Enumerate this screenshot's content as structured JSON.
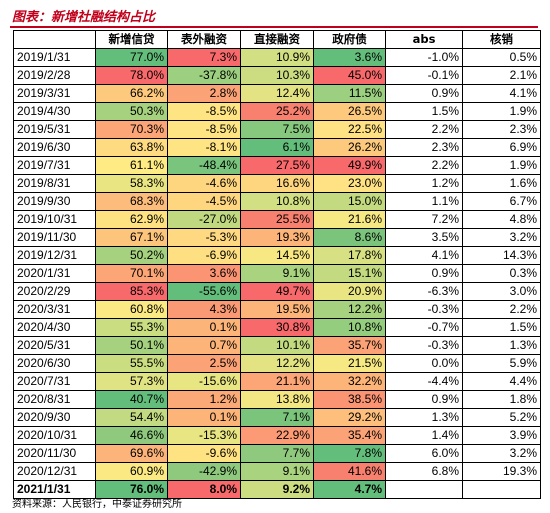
{
  "title": "图表：新增社融结构占比",
  "headers": [
    "",
    "新增信贷",
    "表外融资",
    "直接融资",
    "政府债",
    "abs",
    "核销"
  ],
  "rows": [
    {
      "date": "2019/1/31",
      "cells": [
        {
          "v": "77.0%",
          "c": "#63be7b"
        },
        {
          "v": "7.3%",
          "c": "#f8696b"
        },
        {
          "v": "10.9%",
          "c": "#d2df82"
        },
        {
          "v": "3.6%",
          "c": "#63be7b"
        },
        {
          "v": "-1.0%"
        },
        {
          "v": "0.5%"
        }
      ]
    },
    {
      "date": "2019/2/28",
      "cells": [
        {
          "v": "78.0%",
          "c": "#f8696b"
        },
        {
          "v": "-37.8%",
          "c": "#9ccf7f"
        },
        {
          "v": "10.3%",
          "c": "#cbdc81"
        },
        {
          "v": "45.0%",
          "c": "#f8696b"
        },
        {
          "v": "-0.1%"
        },
        {
          "v": "2.1%"
        }
      ]
    },
    {
      "date": "2019/3/31",
      "cells": [
        {
          "v": "66.2%",
          "c": "#fdc97d"
        },
        {
          "v": "2.8%",
          "c": "#fba276"
        },
        {
          "v": "12.4%",
          "c": "#e3e383"
        },
        {
          "v": "11.5%",
          "c": "#9ccf7f"
        },
        {
          "v": "0.9%"
        },
        {
          "v": "4.1%"
        }
      ]
    },
    {
      "date": "2019/4/30",
      "cells": [
        {
          "v": "50.3%",
          "c": "#a6d27f"
        },
        {
          "v": "-8.5%",
          "c": "#fee482"
        },
        {
          "v": "25.2%",
          "c": "#f8806f"
        },
        {
          "v": "26.5%",
          "c": "#fdc97d"
        },
        {
          "v": "1.5%"
        },
        {
          "v": "1.9%"
        }
      ]
    },
    {
      "date": "2019/5/31",
      "cells": [
        {
          "v": "70.3%",
          "c": "#fca577"
        },
        {
          "v": "-8.5%",
          "c": "#fee482"
        },
        {
          "v": "7.5%",
          "c": "#86c87d"
        },
        {
          "v": "22.5%",
          "c": "#ffe283"
        },
        {
          "v": "2.2%"
        },
        {
          "v": "2.3%"
        }
      ]
    },
    {
      "date": "2019/6/30",
      "cells": [
        {
          "v": "63.8%",
          "c": "#fedb81"
        },
        {
          "v": "-8.1%",
          "c": "#fee482"
        },
        {
          "v": "6.1%",
          "c": "#63be7b"
        },
        {
          "v": "26.2%",
          "c": "#fdc97d"
        },
        {
          "v": "2.3%"
        },
        {
          "v": "6.9%"
        }
      ]
    },
    {
      "date": "2019/7/31",
      "cells": [
        {
          "v": "61.1%",
          "c": "#ffeb84"
        },
        {
          "v": "-48.4%",
          "c": "#7ac57d"
        },
        {
          "v": "27.5%",
          "c": "#f8696b"
        },
        {
          "v": "49.9%",
          "c": "#f8696b"
        },
        {
          "v": "2.2%"
        },
        {
          "v": "1.9%"
        }
      ]
    },
    {
      "date": "2019/8/31",
      "cells": [
        {
          "v": "58.3%",
          "c": "#eae583"
        },
        {
          "v": "-4.6%",
          "c": "#fed680"
        },
        {
          "v": "16.6%",
          "c": "#fed680"
        },
        {
          "v": "23.0%",
          "c": "#ffe283"
        },
        {
          "v": "1.2%"
        },
        {
          "v": "1.6%"
        }
      ]
    },
    {
      "date": "2019/9/30",
      "cells": [
        {
          "v": "68.3%",
          "c": "#fcbc7b"
        },
        {
          "v": "-4.5%",
          "c": "#fed680"
        },
        {
          "v": "10.8%",
          "c": "#d2df82"
        },
        {
          "v": "15.0%",
          "c": "#c3da81"
        },
        {
          "v": "1.1%"
        },
        {
          "v": "6.7%"
        }
      ]
    },
    {
      "date": "2019/10/31",
      "cells": [
        {
          "v": "62.9%",
          "c": "#fee282"
        },
        {
          "v": "-27.0%",
          "c": "#c0d980"
        },
        {
          "v": "25.5%",
          "c": "#f8806f"
        },
        {
          "v": "21.6%",
          "c": "#f6e883"
        },
        {
          "v": "7.2%"
        },
        {
          "v": "4.8%"
        }
      ]
    },
    {
      "date": "2019/11/30",
      "cells": [
        {
          "v": "67.1%",
          "c": "#fdc47c"
        },
        {
          "v": "-5.3%",
          "c": "#fed981"
        },
        {
          "v": "19.3%",
          "c": "#fcb479"
        },
        {
          "v": "8.6%",
          "c": "#7bc47c"
        },
        {
          "v": "3.5%"
        },
        {
          "v": "3.2%"
        }
      ]
    },
    {
      "date": "2019/12/31",
      "cells": [
        {
          "v": "50.2%",
          "c": "#a6d27f"
        },
        {
          "v": "-6.9%",
          "c": "#fedf82"
        },
        {
          "v": "14.5%",
          "c": "#f7e883"
        },
        {
          "v": "17.8%",
          "c": "#d7e082"
        },
        {
          "v": "4.1%"
        },
        {
          "v": "14.3%"
        }
      ]
    },
    {
      "date": "2020/1/31",
      "cells": [
        {
          "v": "70.1%",
          "c": "#fca577"
        },
        {
          "v": "3.6%",
          "c": "#fa9473"
        },
        {
          "v": "9.1%",
          "c": "#aad380"
        },
        {
          "v": "15.1%",
          "c": "#c3da81"
        },
        {
          "v": "0.9%"
        },
        {
          "v": "0.3%"
        }
      ]
    },
    {
      "date": "2020/2/29",
      "cells": [
        {
          "v": "85.3%",
          "c": "#f8696b"
        },
        {
          "v": "-55.6%",
          "c": "#63be7b"
        },
        {
          "v": "49.7%",
          "c": "#f8696b"
        },
        {
          "v": "20.9%",
          "c": "#eae583"
        },
        {
          "v": "-6.3%"
        },
        {
          "v": "3.0%"
        }
      ]
    },
    {
      "date": "2020/3/31",
      "cells": [
        {
          "v": "60.8%",
          "c": "#fbe983"
        },
        {
          "v": "4.3%",
          "c": "#fa9a74"
        },
        {
          "v": "19.5%",
          "c": "#fcb479"
        },
        {
          "v": "12.2%",
          "c": "#a6d27f"
        },
        {
          "v": "-0.3%"
        },
        {
          "v": "2.2%"
        }
      ]
    },
    {
      "date": "2020/4/30",
      "cells": [
        {
          "v": "55.3%",
          "c": "#cade81"
        },
        {
          "v": "0.1%",
          "c": "#fcb479"
        },
        {
          "v": "30.8%",
          "c": "#f8696b"
        },
        {
          "v": "10.8%",
          "c": "#94cd7e"
        },
        {
          "v": "-0.7%"
        },
        {
          "v": "1.5%"
        }
      ]
    },
    {
      "date": "2020/5/31",
      "cells": [
        {
          "v": "50.1%",
          "c": "#a6d27f"
        },
        {
          "v": "0.7%",
          "c": "#fcb479"
        },
        {
          "v": "10.1%",
          "c": "#c3da81"
        },
        {
          "v": "35.7%",
          "c": "#fba276"
        },
        {
          "v": "-0.3%"
        },
        {
          "v": "1.3%"
        }
      ]
    },
    {
      "date": "2020/6/30",
      "cells": [
        {
          "v": "55.5%",
          "c": "#cade81"
        },
        {
          "v": "2.5%",
          "c": "#fba276"
        },
        {
          "v": "12.2%",
          "c": "#e3e383"
        },
        {
          "v": "21.5%",
          "c": "#f6e883"
        },
        {
          "v": "0.0%"
        },
        {
          "v": "5.9%"
        }
      ]
    },
    {
      "date": "2020/7/31",
      "cells": [
        {
          "v": "57.3%",
          "c": "#e0e383"
        },
        {
          "v": "-15.6%",
          "c": "#e8e583"
        },
        {
          "v": "21.1%",
          "c": "#fca577"
        },
        {
          "v": "32.2%",
          "c": "#fcb479"
        },
        {
          "v": "-4.4%"
        },
        {
          "v": "4.4%"
        }
      ]
    },
    {
      "date": "2020/8/31",
      "cells": [
        {
          "v": "40.7%",
          "c": "#63be7b"
        },
        {
          "v": "1.2%",
          "c": "#fba976"
        },
        {
          "v": "13.8%",
          "c": "#f2e783"
        },
        {
          "v": "38.5%",
          "c": "#fa9473"
        },
        {
          "v": "0.9%"
        },
        {
          "v": "1.8%"
        }
      ]
    },
    {
      "date": "2020/9/30",
      "cells": [
        {
          "v": "54.4%",
          "c": "#c2da81"
        },
        {
          "v": "0.1%",
          "c": "#fcb479"
        },
        {
          "v": "7.1%",
          "c": "#7bc47c"
        },
        {
          "v": "29.2%",
          "c": "#fdbf7b"
        },
        {
          "v": "1.3%"
        },
        {
          "v": "5.2%"
        }
      ]
    },
    {
      "date": "2020/10/31",
      "cells": [
        {
          "v": "46.6%",
          "c": "#8ec97e"
        },
        {
          "v": "-15.3%",
          "c": "#e8e583"
        },
        {
          "v": "22.9%",
          "c": "#fb9a74"
        },
        {
          "v": "35.4%",
          "c": "#fba276"
        },
        {
          "v": "1.4%"
        },
        {
          "v": "3.9%"
        }
      ]
    },
    {
      "date": "2020/11/30",
      "cells": [
        {
          "v": "69.6%",
          "c": "#fcb47a"
        },
        {
          "v": "-9.6%",
          "c": "#ffe383"
        },
        {
          "v": "7.7%",
          "c": "#8ec97e"
        },
        {
          "v": "7.8%",
          "c": "#63be7b"
        },
        {
          "v": "6.0%"
        },
        {
          "v": "3.2%"
        }
      ]
    },
    {
      "date": "2020/12/31",
      "cells": [
        {
          "v": "60.9%",
          "c": "#fbe983"
        },
        {
          "v": "-42.9%",
          "c": "#8ec97e"
        },
        {
          "v": "9.1%",
          "c": "#aad380"
        },
        {
          "v": "41.6%",
          "c": "#f8806f"
        },
        {
          "v": "6.8%"
        },
        {
          "v": "19.3%"
        }
      ]
    },
    {
      "date": "2021/1/31",
      "last": true,
      "cells": [
        {
          "v": "76.0%",
          "c": "#63be7b"
        },
        {
          "v": "8.0%",
          "c": "#f8696b"
        },
        {
          "v": "9.2%",
          "c": "#cbdc81"
        },
        {
          "v": "4.7%",
          "c": "#63be7b"
        },
        {
          "v": ""
        },
        {
          "v": ""
        }
      ]
    }
  ],
  "source": "资料来源：人民银行，中泰证券研究所"
}
